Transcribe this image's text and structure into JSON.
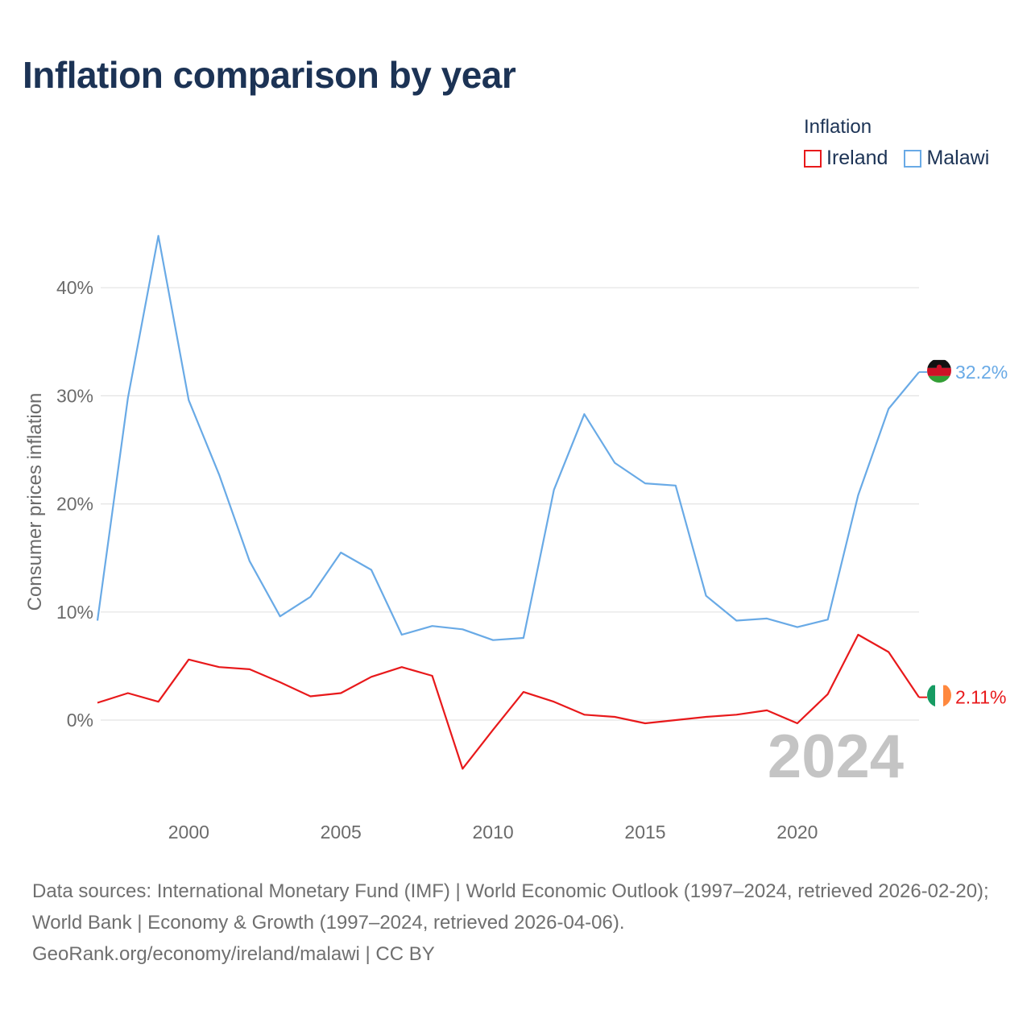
{
  "title": "Inflation comparison by year",
  "legend": {
    "title": "Inflation",
    "items": [
      {
        "label": "Ireland",
        "color": "#e8191b"
      },
      {
        "label": "Malawi",
        "color": "#69aae6"
      }
    ]
  },
  "chart_data": {
    "type": "line",
    "title": "Inflation comparison by year",
    "xlabel": "",
    "ylabel": "Consumer prices inflation",
    "x": [
      1997,
      1998,
      1999,
      2000,
      2001,
      2002,
      2003,
      2004,
      2005,
      2006,
      2007,
      2008,
      2009,
      2010,
      2011,
      2012,
      2013,
      2014,
      2015,
      2016,
      2017,
      2018,
      2019,
      2020,
      2021,
      2022,
      2023,
      2024
    ],
    "xlim": [
      1997,
      2024
    ],
    "ylim": [
      -8,
      48
    ],
    "y_ticks": [
      0,
      10,
      20,
      30,
      40
    ],
    "y_tick_labels": [
      "0%",
      "10%",
      "20%",
      "30%",
      "40%"
    ],
    "x_ticks": [
      2000,
      2005,
      2010,
      2015,
      2020
    ],
    "x_tick_labels": [
      "2000",
      "2005",
      "2010",
      "2015",
      "2020"
    ],
    "grid": true,
    "year_watermark": "2024",
    "series": [
      {
        "name": "Ireland",
        "color": "#e8191b",
        "values": [
          1.6,
          2.5,
          1.7,
          5.6,
          4.9,
          4.7,
          3.5,
          2.2,
          2.5,
          4.0,
          4.9,
          4.1,
          -4.5,
          -0.9,
          2.6,
          1.7,
          0.5,
          0.3,
          -0.3,
          0.0,
          0.3,
          0.5,
          0.9,
          -0.3,
          2.4,
          7.9,
          6.3,
          2.11
        ],
        "end_label": "2.11%",
        "flag": "ireland-flag"
      },
      {
        "name": "Malawi",
        "color": "#69aae6",
        "values": [
          9.2,
          29.8,
          44.8,
          29.6,
          22.7,
          14.7,
          9.6,
          11.4,
          15.5,
          13.9,
          7.9,
          8.7,
          8.4,
          7.4,
          7.6,
          21.3,
          28.3,
          23.8,
          21.9,
          21.7,
          11.5,
          9.2,
          9.4,
          8.6,
          9.3,
          20.8,
          28.8,
          32.2
        ],
        "end_label": "32.2%",
        "flag": "malawi-flag"
      }
    ]
  },
  "footer": {
    "sources": "Data sources: International Monetary Fund (IMF) | World Economic Outlook (1997–2024, retrieved 2026-02-20); World Bank | Economy & Growth (1997–2024, retrieved 2026-04-06).",
    "attribution": "GeoRank.org/economy/ireland/malawi | CC BY"
  }
}
